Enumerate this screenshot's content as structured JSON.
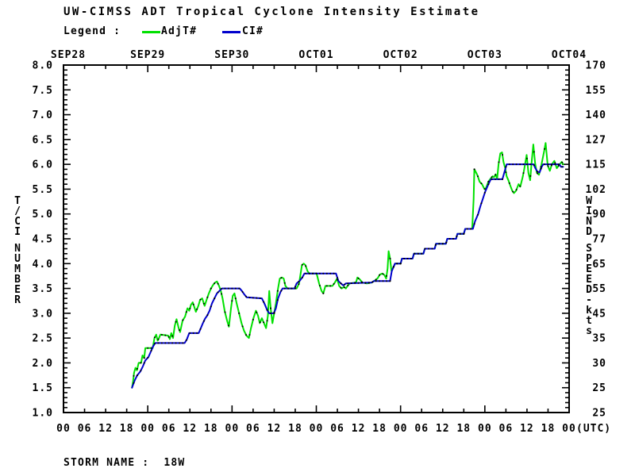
{
  "header": {
    "title": "UW-CIMSS ADT Tropical Cyclone Intensity Estimate"
  },
  "legend": {
    "label": "Legend :",
    "adjt_label": "AdjT#",
    "ci_label": "CI#"
  },
  "footer": {
    "storm_name": "STORM NAME :  18W"
  },
  "colors": {
    "adjt": "#00e000",
    "ci": "#0000cc",
    "axis": "#000000",
    "marker": "#000000",
    "background": "#ffffff"
  },
  "chart_data": {
    "type": "line",
    "title": "UW-CIMSS ADT Tropical Cyclone Intensity Estimate",
    "x_axis": {
      "unit": "hours since SEP28 00 UTC",
      "range": [
        0,
        144
      ],
      "minor_tick_hours": 6,
      "major_tick_hours": 24,
      "day_labels": [
        "SEP28",
        "SEP29",
        "SEP30",
        "OCT01",
        "OCT02",
        "OCT03",
        "OCT04"
      ],
      "hour_labels": [
        "00",
        "06",
        "12",
        "18",
        "00",
        "06",
        "12",
        "18",
        "00",
        "06",
        "12",
        "18",
        "00",
        "06",
        "12",
        "18",
        "00",
        "06",
        "12",
        "18",
        "00",
        "06",
        "12",
        "18",
        "00"
      ],
      "utc_suffix": "(UTC)"
    },
    "y_left": {
      "label": "T/CI NUMBER",
      "range": [
        1.0,
        8.0
      ],
      "major_step": 0.5,
      "minor_step": 0.1,
      "tick_labels": [
        "8.0",
        "7.5",
        "7.0",
        "6.5",
        "6.0",
        "5.5",
        "5.0",
        "4.5",
        "4.0",
        "3.5",
        "3.0",
        "2.5",
        "2.0",
        "1.5",
        "1.0"
      ]
    },
    "y_right": {
      "label": "WIND SPEED-kts",
      "tick_labels": [
        "170",
        "155",
        "140",
        "127",
        "115",
        "102",
        "90",
        "77",
        "65",
        "55",
        "45",
        "35",
        "30",
        "25",
        "25"
      ]
    },
    "grid": false,
    "legend_position": "top-left",
    "series": [
      {
        "name": "AdjT#",
        "color": "#00e000",
        "points": [
          [
            19.5,
            1.5
          ],
          [
            19.8,
            1.62
          ],
          [
            20.1,
            1.8
          ],
          [
            20.5,
            1.9
          ],
          [
            20.9,
            1.85
          ],
          [
            21.4,
            2.0
          ],
          [
            22.1,
            2.0
          ],
          [
            22.5,
            2.15
          ],
          [
            23.0,
            2.1
          ],
          [
            23.3,
            2.3
          ],
          [
            25.4,
            2.3
          ],
          [
            25.9,
            2.5
          ],
          [
            26.4,
            2.57
          ],
          [
            26.8,
            2.45
          ],
          [
            27.2,
            2.5
          ],
          [
            27.6,
            2.57
          ],
          [
            29.8,
            2.55
          ],
          [
            30.3,
            2.48
          ],
          [
            30.7,
            2.6
          ],
          [
            31.2,
            2.5
          ],
          [
            31.7,
            2.75
          ],
          [
            32.2,
            2.88
          ],
          [
            32.8,
            2.7
          ],
          [
            33.2,
            2.62
          ],
          [
            33.9,
            2.85
          ],
          [
            34.6,
            2.93
          ],
          [
            35.3,
            3.1
          ],
          [
            35.8,
            3.05
          ],
          [
            36.3,
            3.17
          ],
          [
            36.8,
            3.22
          ],
          [
            37.7,
            3.03
          ],
          [
            38.4,
            3.15
          ],
          [
            38.9,
            3.27
          ],
          [
            39.5,
            3.3
          ],
          [
            40.2,
            3.15
          ],
          [
            40.9,
            3.3
          ],
          [
            41.4,
            3.4
          ],
          [
            42.0,
            3.5
          ],
          [
            42.6,
            3.57
          ],
          [
            43.2,
            3.62
          ],
          [
            43.7,
            3.64
          ],
          [
            44.3,
            3.55
          ],
          [
            44.8,
            3.45
          ],
          [
            45.3,
            3.3
          ],
          [
            45.9,
            3.05
          ],
          [
            46.6,
            2.85
          ],
          [
            47.1,
            2.73
          ],
          [
            47.7,
            3.1
          ],
          [
            48.2,
            3.35
          ],
          [
            48.7,
            3.4
          ],
          [
            49.3,
            3.2
          ],
          [
            50.0,
            3.0
          ],
          [
            50.7,
            2.8
          ],
          [
            51.4,
            2.65
          ],
          [
            52.1,
            2.55
          ],
          [
            52.8,
            2.5
          ],
          [
            53.4,
            2.7
          ],
          [
            54.1,
            2.9
          ],
          [
            54.8,
            3.05
          ],
          [
            55.4,
            2.95
          ],
          [
            55.9,
            2.8
          ],
          [
            56.5,
            2.9
          ],
          [
            57.1,
            2.8
          ],
          [
            57.7,
            2.7
          ],
          [
            58.2,
            2.95
          ],
          [
            58.6,
            3.45
          ],
          [
            59.0,
            3.1
          ],
          [
            59.5,
            2.8
          ],
          [
            60.0,
            3.0
          ],
          [
            60.5,
            3.2
          ],
          [
            61.1,
            3.5
          ],
          [
            61.6,
            3.7
          ],
          [
            62.2,
            3.72
          ],
          [
            62.7,
            3.7
          ],
          [
            63.2,
            3.55
          ],
          [
            63.8,
            3.5
          ],
          [
            66.4,
            3.5
          ],
          [
            67.1,
            3.6
          ],
          [
            67.9,
            3.97
          ],
          [
            68.4,
            4.0
          ],
          [
            68.9,
            3.97
          ],
          [
            69.5,
            3.85
          ],
          [
            70.0,
            3.8
          ],
          [
            72.1,
            3.8
          ],
          [
            72.8,
            3.6
          ],
          [
            73.5,
            3.45
          ],
          [
            74.0,
            3.4
          ],
          [
            74.6,
            3.55
          ],
          [
            76.6,
            3.55
          ],
          [
            77.3,
            3.62
          ],
          [
            77.9,
            3.7
          ],
          [
            78.5,
            3.55
          ],
          [
            79.2,
            3.5
          ],
          [
            79.9,
            3.53
          ],
          [
            80.4,
            3.5
          ],
          [
            80.9,
            3.55
          ],
          [
            81.5,
            3.6
          ],
          [
            83.3,
            3.62
          ],
          [
            83.7,
            3.72
          ],
          [
            84.4,
            3.68
          ],
          [
            85.1,
            3.62
          ],
          [
            86.4,
            3.6
          ],
          [
            87.8,
            3.62
          ],
          [
            88.5,
            3.65
          ],
          [
            89.4,
            3.7
          ],
          [
            90.1,
            3.78
          ],
          [
            90.8,
            3.8
          ],
          [
            91.4,
            3.77
          ],
          [
            91.9,
            3.7
          ],
          [
            92.3,
            3.9
          ],
          [
            92.6,
            4.25
          ],
          [
            93.0,
            4.1
          ],
          [
            93.4,
            3.85
          ],
          [
            93.9,
            3.92
          ],
          [
            94.4,
            4.0
          ],
          [
            96.0,
            4.0
          ],
          [
            96.4,
            4.1
          ],
          [
            99.4,
            4.1
          ],
          [
            99.8,
            4.2
          ],
          [
            102.5,
            4.2
          ],
          [
            102.9,
            4.3
          ],
          [
            105.7,
            4.3
          ],
          [
            106.1,
            4.4
          ],
          [
            108.9,
            4.4
          ],
          [
            109.3,
            4.5
          ],
          [
            111.8,
            4.5
          ],
          [
            112.2,
            4.6
          ],
          [
            114.0,
            4.6
          ],
          [
            114.4,
            4.7
          ],
          [
            116.4,
            4.7
          ],
          [
            116.8,
            5.3
          ],
          [
            117.0,
            5.9
          ],
          [
            117.4,
            5.85
          ],
          [
            117.9,
            5.78
          ],
          [
            118.5,
            5.65
          ],
          [
            119.2,
            5.6
          ],
          [
            119.9,
            5.5
          ],
          [
            120.3,
            5.52
          ],
          [
            121.0,
            5.65
          ],
          [
            121.7,
            5.72
          ],
          [
            122.2,
            5.76
          ],
          [
            122.6,
            5.74
          ],
          [
            123.1,
            5.8
          ],
          [
            123.5,
            5.7
          ],
          [
            123.9,
            6.0
          ],
          [
            124.4,
            6.22
          ],
          [
            124.9,
            6.24
          ],
          [
            125.3,
            6.05
          ],
          [
            125.8,
            5.92
          ],
          [
            126.2,
            5.76
          ],
          [
            126.7,
            5.68
          ],
          [
            127.1,
            5.6
          ],
          [
            127.8,
            5.47
          ],
          [
            128.3,
            5.42
          ],
          [
            128.9,
            5.47
          ],
          [
            129.6,
            5.6
          ],
          [
            130.1,
            5.55
          ],
          [
            130.8,
            5.75
          ],
          [
            131.2,
            5.9
          ],
          [
            131.9,
            6.19
          ],
          [
            132.4,
            5.83
          ],
          [
            132.9,
            5.68
          ],
          [
            133.4,
            6.1
          ],
          [
            133.8,
            6.4
          ],
          [
            134.3,
            6.03
          ],
          [
            134.8,
            5.83
          ],
          [
            135.4,
            5.79
          ],
          [
            136.0,
            5.95
          ],
          [
            136.9,
            6.27
          ],
          [
            137.3,
            6.43
          ],
          [
            137.9,
            5.98
          ],
          [
            138.5,
            5.87
          ],
          [
            139.1,
            6.0
          ],
          [
            139.8,
            6.07
          ],
          [
            140.5,
            5.92
          ],
          [
            141.3,
            6.0
          ],
          [
            141.9,
            6.05
          ],
          [
            142.3,
            6.0
          ]
        ]
      },
      {
        "name": "CI#",
        "color": "#0000cc",
        "points": [
          [
            19.5,
            1.5
          ],
          [
            20.3,
            1.65
          ],
          [
            21.0,
            1.75
          ],
          [
            21.9,
            1.83
          ],
          [
            22.6,
            1.93
          ],
          [
            23.3,
            2.05
          ],
          [
            24.2,
            2.12
          ],
          [
            24.9,
            2.23
          ],
          [
            25.5,
            2.33
          ],
          [
            26.1,
            2.4
          ],
          [
            34.5,
            2.4
          ],
          [
            35.1,
            2.47
          ],
          [
            35.8,
            2.6
          ],
          [
            38.5,
            2.6
          ],
          [
            39.1,
            2.7
          ],
          [
            39.7,
            2.8
          ],
          [
            40.3,
            2.89
          ],
          [
            40.9,
            2.95
          ],
          [
            41.6,
            3.05
          ],
          [
            42.3,
            3.2
          ],
          [
            43.0,
            3.3
          ],
          [
            43.7,
            3.4
          ],
          [
            44.4,
            3.45
          ],
          [
            45.1,
            3.5
          ],
          [
            50.2,
            3.5
          ],
          [
            50.8,
            3.45
          ],
          [
            51.5,
            3.38
          ],
          [
            52.2,
            3.32
          ],
          [
            56.5,
            3.3
          ],
          [
            57.2,
            3.2
          ],
          [
            58.1,
            3.05
          ],
          [
            58.6,
            3.0
          ],
          [
            59.9,
            3.0
          ],
          [
            60.5,
            3.1
          ],
          [
            61.1,
            3.3
          ],
          [
            61.8,
            3.43
          ],
          [
            62.4,
            3.5
          ],
          [
            65.8,
            3.5
          ],
          [
            66.4,
            3.6
          ],
          [
            67.2,
            3.65
          ],
          [
            68.0,
            3.72
          ],
          [
            68.6,
            3.8
          ],
          [
            77.6,
            3.8
          ],
          [
            78.3,
            3.65
          ],
          [
            79.0,
            3.6
          ],
          [
            79.7,
            3.56
          ],
          [
            80.4,
            3.6
          ],
          [
            87.8,
            3.62
          ],
          [
            88.4,
            3.65
          ],
          [
            93.0,
            3.65
          ],
          [
            93.5,
            3.85
          ],
          [
            94.4,
            4.0
          ],
          [
            96.0,
            4.0
          ],
          [
            96.4,
            4.1
          ],
          [
            99.4,
            4.1
          ],
          [
            99.8,
            4.2
          ],
          [
            102.5,
            4.2
          ],
          [
            102.9,
            4.3
          ],
          [
            105.7,
            4.3
          ],
          [
            106.1,
            4.4
          ],
          [
            108.9,
            4.4
          ],
          [
            109.3,
            4.5
          ],
          [
            111.8,
            4.5
          ],
          [
            112.2,
            4.6
          ],
          [
            114.0,
            4.6
          ],
          [
            114.4,
            4.7
          ],
          [
            116.6,
            4.7
          ],
          [
            117.2,
            4.85
          ],
          [
            118.1,
            5.0
          ],
          [
            118.7,
            5.15
          ],
          [
            119.4,
            5.3
          ],
          [
            120.1,
            5.45
          ],
          [
            121.0,
            5.6
          ],
          [
            121.7,
            5.7
          ],
          [
            125.0,
            5.7
          ],
          [
            125.6,
            5.85
          ],
          [
            126.2,
            6.0
          ],
          [
            133.9,
            6.0
          ],
          [
            134.4,
            5.92
          ],
          [
            135.0,
            5.85
          ],
          [
            135.6,
            5.84
          ],
          [
            136.2,
            5.95
          ],
          [
            136.6,
            6.0
          ],
          [
            141.2,
            6.0
          ],
          [
            141.7,
            5.95
          ],
          [
            142.3,
            5.95
          ]
        ]
      }
    ],
    "footer": "STORM NAME :  18W"
  }
}
